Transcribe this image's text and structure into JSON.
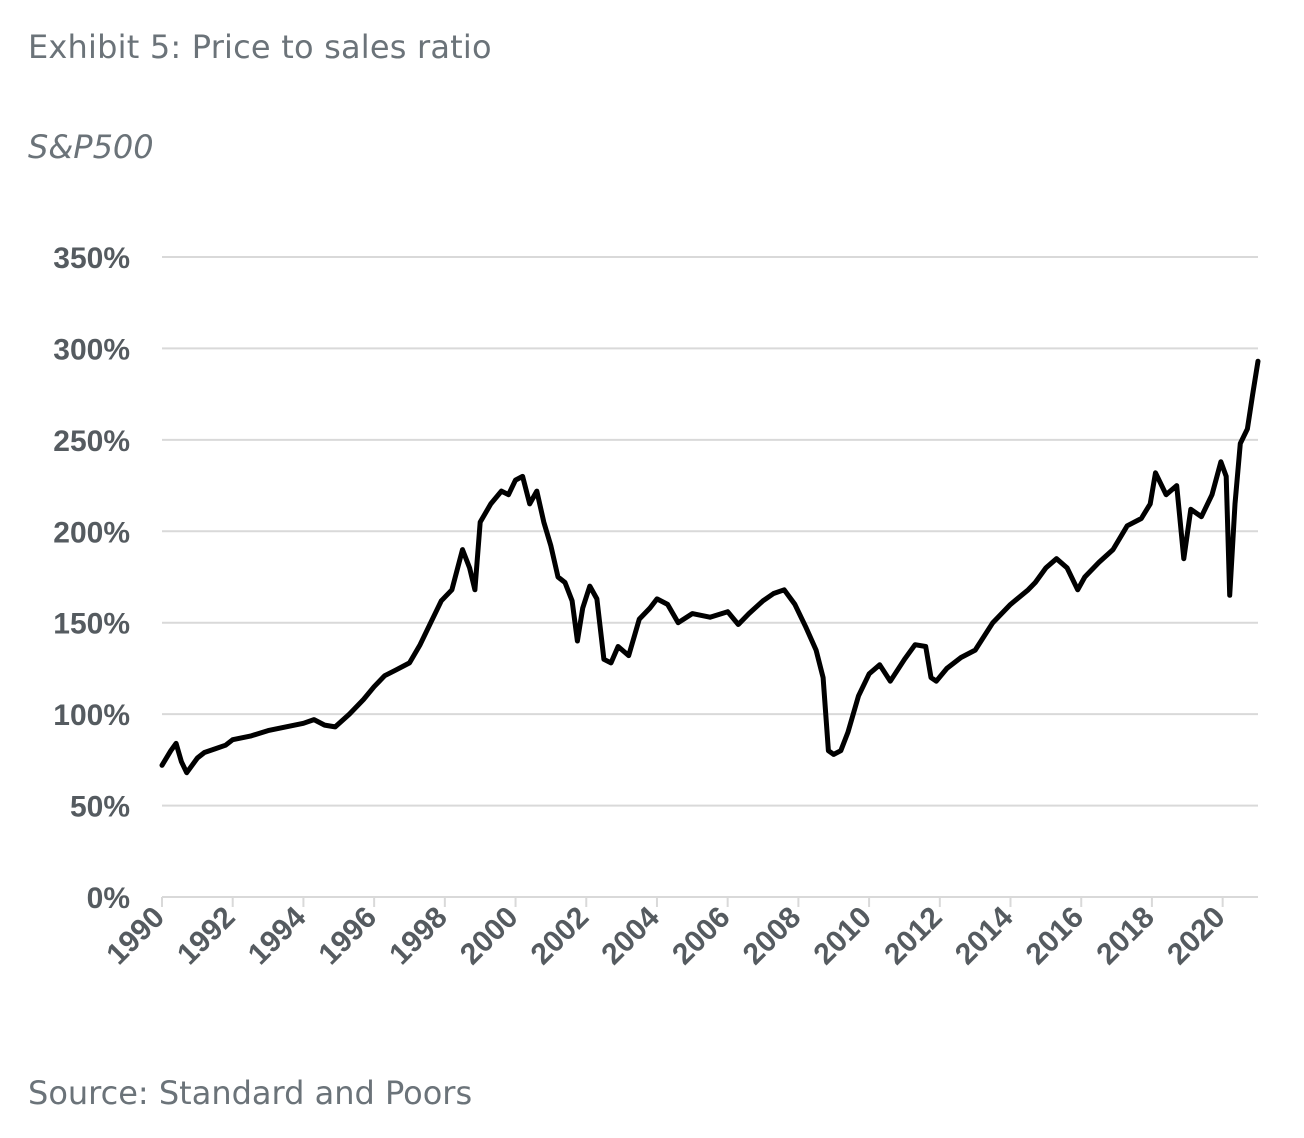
{
  "title": "Exhibit 5: Price to sales ratio",
  "subtitle": "S&P500",
  "source": "Source: Standard and Poors",
  "colors": {
    "line": "#000000",
    "grid": "#d9d9d9",
    "text": "#6b7379",
    "tick": "#555b60"
  },
  "chart_data": {
    "type": "line",
    "title": "Exhibit 5: Price to sales ratio",
    "subtitle": "S&P500",
    "xlabel": "",
    "ylabel": "",
    "xlim": [
      1990,
      2021
    ],
    "ylim": [
      0,
      350
    ],
    "y_ticks": [
      0,
      50,
      100,
      150,
      200,
      250,
      300,
      350
    ],
    "y_tick_labels": [
      "0%",
      "50%",
      "100%",
      "150%",
      "200%",
      "250%",
      "300%",
      "350%"
    ],
    "x_ticks": [
      1990,
      1992,
      1994,
      1996,
      1998,
      2000,
      2002,
      2004,
      2006,
      2008,
      2010,
      2012,
      2014,
      2016,
      2018,
      2020
    ],
    "x_tick_labels": [
      "1990",
      "1992",
      "1994",
      "1996",
      "1998",
      "2000",
      "2002",
      "2004",
      "2006",
      "2008",
      "2010",
      "2012",
      "2014",
      "2016",
      "2018",
      "2020"
    ],
    "grid": true,
    "legend": "none",
    "series": [
      {
        "x": [
          1990.0,
          1990.25,
          1990.4,
          1990.55,
          1990.7,
          1990.85,
          1991.0,
          1991.2,
          1991.5,
          1991.8,
          1992.0,
          1992.5,
          1993.0,
          1993.5,
          1994.0,
          1994.3,
          1994.6,
          1994.9,
          1995.3,
          1995.7,
          1996.0,
          1996.3,
          1996.6,
          1997.0,
          1997.3,
          1997.6,
          1997.9,
          1998.2,
          1998.5,
          1998.7,
          1998.85,
          1999.0,
          1999.3,
          1999.6,
          1999.8,
          2000.0,
          2000.2,
          2000.4,
          2000.6,
          2000.8,
          2001.0,
          2001.2,
          2001.4,
          2001.6,
          2001.75,
          2001.9,
          2002.1,
          2002.3,
          2002.5,
          2002.7,
          2002.9,
          2003.2,
          2003.5,
          2003.8,
          2004.0,
          2004.3,
          2004.6,
          2005.0,
          2005.5,
          2006.0,
          2006.3,
          2006.6,
          2007.0,
          2007.3,
          2007.6,
          2007.9,
          2008.2,
          2008.5,
          2008.7,
          2008.85,
          2009.0,
          2009.2,
          2009.4,
          2009.7,
          2010.0,
          2010.3,
          2010.6,
          2011.0,
          2011.3,
          2011.6,
          2011.75,
          2011.9,
          2012.2,
          2012.6,
          2013.0,
          2013.5,
          2014.0,
          2014.5,
          2014.7,
          2015.0,
          2015.3,
          2015.6,
          2015.9,
          2016.1,
          2016.5,
          2016.9,
          2017.3,
          2017.7,
          2017.95,
          2018.1,
          2018.4,
          2018.7,
          2018.9,
          2019.1,
          2019.4,
          2019.7,
          2019.95,
          2020.1,
          2020.2,
          2020.35,
          2020.5,
          2020.7,
          2020.85,
          2021.0
        ],
        "y": [
          72,
          80,
          84,
          74,
          68,
          72,
          76,
          79,
          81,
          83,
          86,
          88,
          91,
          93,
          95,
          97,
          94,
          93,
          100,
          108,
          115,
          121,
          124,
          128,
          138,
          150,
          162,
          168,
          190,
          180,
          168,
          205,
          215,
          222,
          220,
          228,
          230,
          215,
          222,
          205,
          192,
          175,
          172,
          162,
          140,
          158,
          170,
          163,
          130,
          128,
          137,
          132,
          152,
          158,
          163,
          160,
          150,
          155,
          153,
          156,
          149,
          155,
          162,
          166,
          168,
          160,
          148,
          135,
          120,
          80,
          78,
          80,
          90,
          110,
          122,
          127,
          118,
          130,
          138,
          137,
          120,
          118,
          125,
          131,
          135,
          150,
          160,
          168,
          172,
          180,
          185,
          180,
          168,
          175,
          183,
          190,
          203,
          207,
          215,
          232,
          220,
          225,
          185,
          212,
          208,
          220,
          238,
          230,
          165,
          215,
          248,
          256,
          275,
          293
        ]
      }
    ]
  }
}
